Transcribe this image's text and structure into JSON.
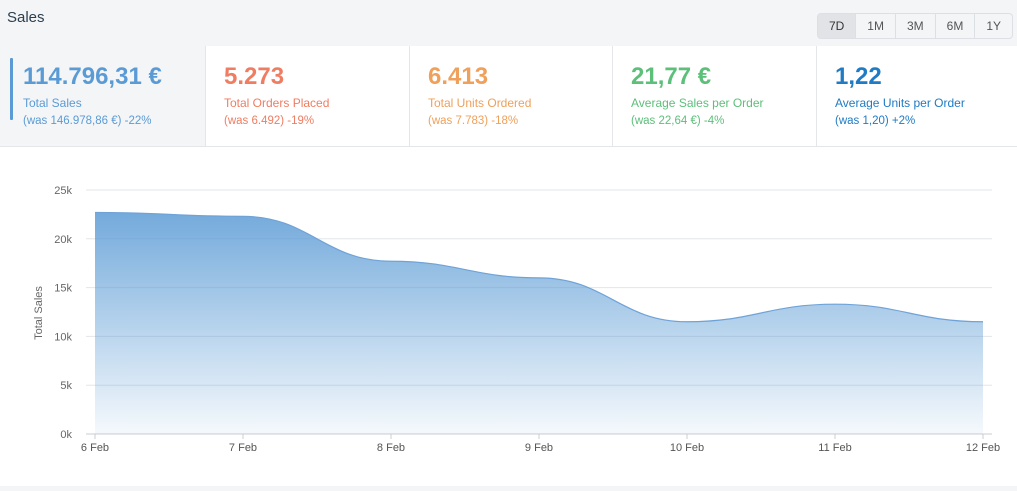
{
  "header": {
    "title": "Sales",
    "ranges": [
      "7D",
      "1M",
      "3M",
      "6M",
      "1Y"
    ],
    "active_range": "7D"
  },
  "metrics": [
    {
      "value": "114.796,31 €",
      "label": "Total Sales",
      "was": "(was 146.978,86 €) -22%",
      "color": "#5b9bd5"
    },
    {
      "value": "5.273",
      "label": "Total Orders Placed",
      "was": "(was 6.492) -19%",
      "color": "#ef7d62"
    },
    {
      "value": "6.413",
      "label": "Total Units Ordered",
      "was": "(was 7.783) -18%",
      "color": "#efa05b"
    },
    {
      "value": "21,77 €",
      "label": "Average Sales per Order",
      "was": "(was 22,64 €) -4%",
      "color": "#5cbf7a"
    },
    {
      "value": "1,22",
      "label": "Average Units per Order",
      "was": "(was 1,20) +2%",
      "color": "#1f7bc4"
    }
  ],
  "chart_data": {
    "type": "area",
    "ylabel": "Total Sales",
    "categories": [
      "6 Feb",
      "7 Feb",
      "8 Feb",
      "9 Feb",
      "10 Feb",
      "11 Feb",
      "12 Feb"
    ],
    "values": [
      22700,
      22300,
      17700,
      16000,
      11500,
      13300,
      11500
    ],
    "yticks": [
      "0k",
      "5k",
      "10k",
      "15k",
      "20k",
      "25k"
    ],
    "ylim": [
      0,
      25000
    ],
    "grid": true,
    "color": "#5b9bd5"
  }
}
